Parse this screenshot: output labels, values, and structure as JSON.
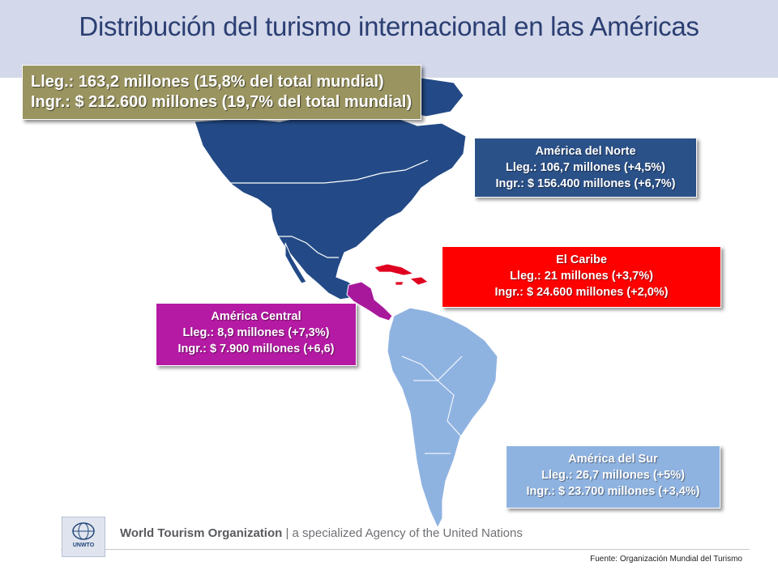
{
  "title": "Distribución del turismo internacional en las Américas",
  "summary": {
    "arrivals": "Lleg.: 163,2 millones (15,8% del total mundial)",
    "receipts": "Ingr.: $ 212.600 millones (19,7% del total mundial)"
  },
  "regions": {
    "norte": {
      "name": "América del Norte",
      "arrivals": "Lleg.: 106,7 millones (+4,5%)",
      "receipts": "Ingr.: $ 156.400 millones  (+6,7%)",
      "color": "#2b5189"
    },
    "caribe": {
      "name": "El Caribe",
      "arrivals": "Lleg.: 21 millones (+3,7%)",
      "receipts": "Ingr.: $ 24.600 millones (+2,0%)",
      "color": "#ff0000"
    },
    "central": {
      "name": "América Central",
      "arrivals": "Lleg.: 8,9 millones (+7,3%)",
      "receipts": "Ingr.: $ 7.900 millones (+6,6)",
      "color": "#b51aa4"
    },
    "sur": {
      "name": "América del Sur",
      "arrivals": "Lleg.: 26,7 millones (+5%)",
      "receipts": "Ingr.: $ 23.700 millones (+3,4%)",
      "color": "#8fb3e1"
    }
  },
  "footer": {
    "logo_text": "UNWTO",
    "org_name": "World Tourism Organization",
    "org_tagline": " | a specialized Agency of the United Nations",
    "source": "Fuente: Organización Mundial del Turismo"
  }
}
